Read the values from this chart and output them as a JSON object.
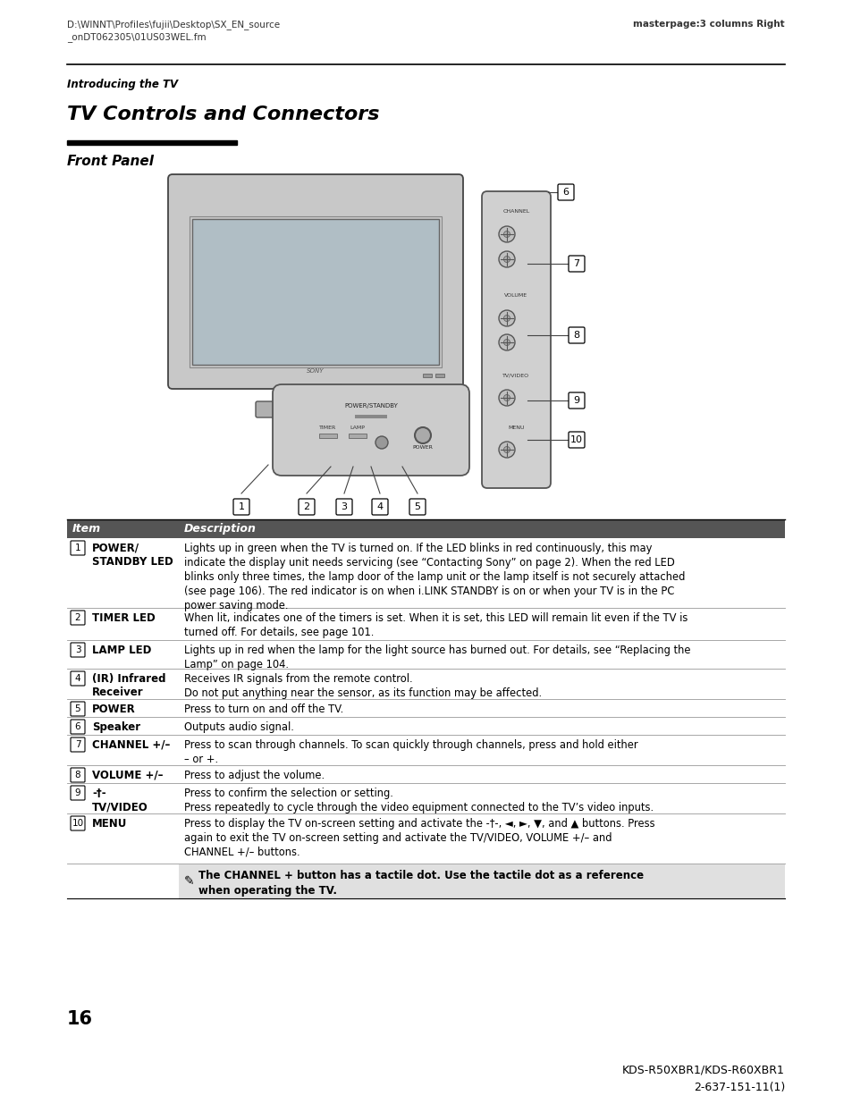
{
  "header_left1": "D:\\WINNT\\Profiles\\fujii\\Desktop\\SX_EN_source",
  "header_left2": "_onDT062305\\01US03WEL.fm",
  "header_right": "masterpage:3 columns Right",
  "section_label": "Introducing the TV",
  "main_title": "TV Controls and Connectors",
  "sub_title": "Front Panel",
  "table_header": [
    "Item",
    "Description"
  ],
  "table_rows": [
    {
      "item_num": "1",
      "item_name": "POWER/\nSTANDBY LED",
      "description": "Lights up in green when the TV is turned on. If the LED blinks in red continuously, this may\nindicate the display unit needs servicing (see “Contacting Sony” on page 2). When the red LED\nblinks only three times, the lamp door of the lamp unit or the lamp itself is not securely attached\n(see page 106). The red indicator is on when i.LINK STANDBY is on or when your TV is in the PC\npower saving mode."
    },
    {
      "item_num": "2",
      "item_name": "TIMER LED",
      "description": "When lit, indicates one of the timers is set. When it is set, this LED will remain lit even if the TV is\nturned off. For details, see page 101."
    },
    {
      "item_num": "3",
      "item_name": "LAMP LED",
      "description": "Lights up in red when the lamp for the light source has burned out. For details, see “Replacing the\nLamp” on page 104."
    },
    {
      "item_num": "4",
      "item_name": "(IR) Infrared\nReceiver",
      "description": "Receives IR signals from the remote control.\nDo not put anything near the sensor, as its function may be affected."
    },
    {
      "item_num": "5",
      "item_name": "POWER",
      "description": "Press to turn on and off the TV."
    },
    {
      "item_num": "6",
      "item_name": "Speaker",
      "description": "Outputs audio signal."
    },
    {
      "item_num": "7",
      "item_name": "CHANNEL +/–",
      "description": "Press to scan through channels. To scan quickly through channels, press and hold either\n– or +."
    },
    {
      "item_num": "8",
      "item_name": "VOLUME +/–",
      "description": "Press to adjust the volume."
    },
    {
      "item_num": "9",
      "item_name": "-†-\nTV/VIDEO",
      "description": "Press to confirm the selection or setting.\nPress repeatedly to cycle through the video equipment connected to the TV’s video inputs."
    },
    {
      "item_num": "10",
      "item_name": "MENU",
      "description": "Press to display the TV on-screen setting and activate the -†-, ◄, ►, ▼, and ▲ buttons. Press\nagain to exit the TV on-screen setting and activate the TV/VIDEO, VOLUME +/– and\nCHANNEL +/– buttons."
    }
  ],
  "note_text": "The CHANNEL + button has a tactile dot. Use the tactile dot as a reference\nwhen operating the TV.",
  "page_number": "16",
  "footer_model": "KDS-R50XBR1/KDS-R60XBR1",
  "footer_code": "2-637-151-11(1)",
  "bg_color": "#ffffff",
  "header_color": "#333333",
  "table_header_bg": "#555555",
  "table_header_fg": "#ffffff",
  "row_line_color": "#999999",
  "note_bg": "#e0e0e0",
  "title_color": "#000000",
  "body_color": "#000000"
}
